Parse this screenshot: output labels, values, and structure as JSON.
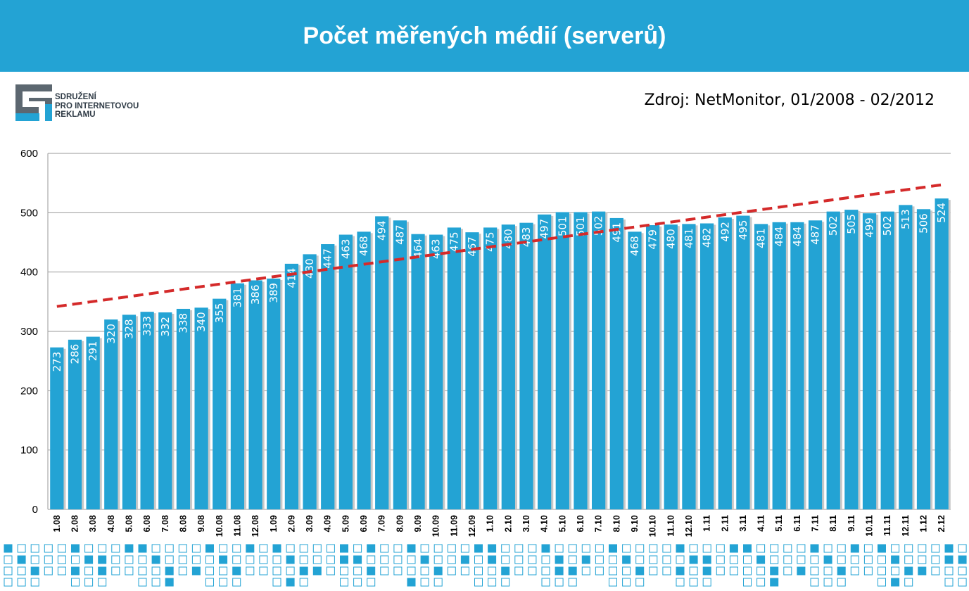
{
  "header": {
    "title": "Počet měřených médií (serverů)"
  },
  "logo": {
    "lines": [
      "SDRUŽENÍ",
      "PRO INTERNETOVOU",
      "REKLAMU"
    ]
  },
  "source": "Zdroj: NetMonitor, 01/2008 - 02/2012",
  "colors": {
    "header": "#23a3d4",
    "bar": "#23a3d4",
    "trend": "#d42a2a",
    "pattern": "#23a3d4"
  },
  "chart_data": {
    "type": "bar",
    "title": "",
    "xlabel": "",
    "ylabel": "",
    "ylim": [
      0,
      600
    ],
    "yticks": [
      0,
      100,
      200,
      300,
      400,
      500,
      600
    ],
    "grid": true,
    "categories": [
      "1.08",
      "2.08",
      "3.08",
      "4.08",
      "5.08",
      "6.08",
      "7.08",
      "8.08",
      "9.08",
      "10.08",
      "11.08",
      "12.08",
      "1.09",
      "2.09",
      "3.09",
      "4.09",
      "5.09",
      "6.09",
      "7.09",
      "8.09",
      "9.09",
      "10.09",
      "11.09",
      "12.09",
      "1.10",
      "2.10",
      "3.10",
      "4.10",
      "5.10",
      "6.10",
      "7.10",
      "8.10",
      "9.10",
      "10.10",
      "11.10",
      "12.10",
      "1.11",
      "2.11",
      "3.11",
      "4.11",
      "5.11",
      "6.11",
      "7.11",
      "8.11",
      "9.11",
      "10.11",
      "11.11",
      "12.11",
      "1.12",
      "2.12"
    ],
    "values": [
      273,
      286,
      291,
      320,
      328,
      333,
      332,
      338,
      340,
      355,
      381,
      386,
      389,
      414,
      430,
      447,
      463,
      468,
      494,
      487,
      464,
      463,
      475,
      467,
      475,
      480,
      483,
      497,
      501,
      501,
      502,
      491,
      468,
      479,
      480,
      481,
      482,
      492,
      495,
      481,
      484,
      484,
      487,
      502,
      505,
      499,
      502,
      513,
      506,
      524
    ],
    "trendline": {
      "type": "linear",
      "start": 342,
      "end": 547,
      "style": "dashed"
    }
  }
}
